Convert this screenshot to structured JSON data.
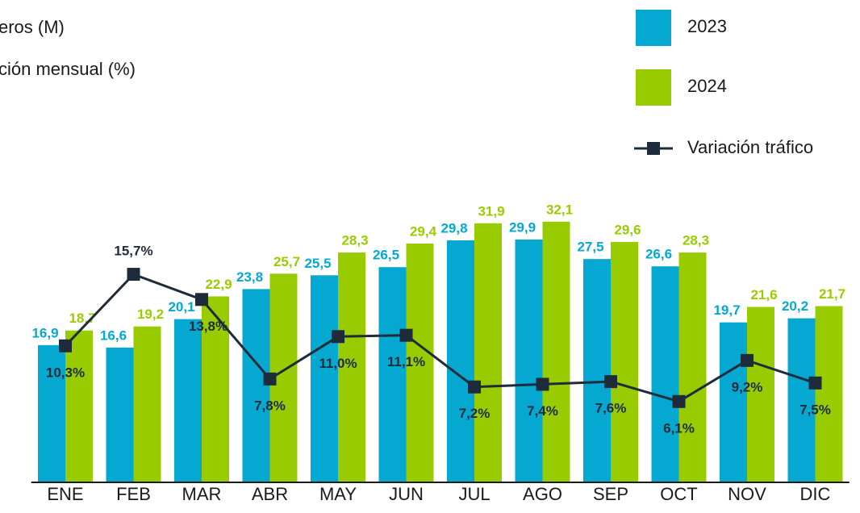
{
  "chart_data": {
    "type": "bar-line",
    "title": "eros (M)",
    "subtitle": "ción mensual (%)",
    "categories": [
      "ENE",
      "FEB",
      "MAR",
      "ABR",
      "MAY",
      "JUN",
      "JUL",
      "AGO",
      "SEP",
      "OCT",
      "NOV",
      "DIC"
    ],
    "series": [
      {
        "name": "2023",
        "type": "bar",
        "color": "#05a8d0",
        "values": [
          16.9,
          16.6,
          20.1,
          23.8,
          25.5,
          26.5,
          29.8,
          29.9,
          27.5,
          26.6,
          19.7,
          20.2
        ],
        "value_labels": [
          "16,9",
          "16,6",
          "20,1",
          "23,8",
          "25,5",
          "26,5",
          "29,8",
          "29,9",
          "27,5",
          "26,6",
          "19,7",
          "20,2"
        ]
      },
      {
        "name": "2024",
        "type": "bar",
        "color": "#99cc00",
        "values": [
          18.7,
          19.2,
          22.9,
          25.7,
          28.3,
          29.4,
          31.9,
          32.1,
          29.6,
          28.3,
          21.6,
          21.7
        ],
        "value_labels": [
          "18,7",
          "19,2",
          "22,9",
          "25,7",
          "28,3",
          "29,4",
          "31,9",
          "32,1",
          "29,6",
          "28,3",
          "21,6",
          "21,7"
        ]
      },
      {
        "name": "Variación tráfico",
        "type": "line",
        "axis": "y2",
        "color": "#1d2b3a",
        "values": [
          10.3,
          15.7,
          13.8,
          7.8,
          11.0,
          11.1,
          7.2,
          7.4,
          7.6,
          6.1,
          9.2,
          7.5
        ],
        "value_labels": [
          "10,3%",
          "15,7%",
          "13,8%",
          "7,8%",
          "11,0%",
          "11,1%",
          "7,2%",
          "7,4%",
          "7,6%",
          "6,1%",
          "9,2%",
          "7,5%"
        ]
      }
    ],
    "ylim": [
      0,
      59.4
    ],
    "y2lim": [
      0,
      36.4
    ],
    "legend": "top-right"
  }
}
